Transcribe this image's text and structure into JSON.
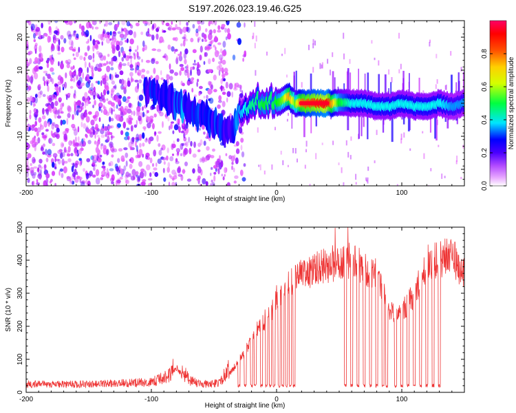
{
  "title": "S197.2026.023.19.46.G25",
  "chart_data": [
    {
      "type": "heatmap",
      "title": "S197.2026.023.19.46.G25",
      "xlabel": "Height of straight line (km)",
      "ylabel": "Frequency (Hz)",
      "xlim": [
        -200,
        150
      ],
      "ylim": [
        -25,
        25
      ],
      "xticks": [
        -200,
        -100,
        0,
        100
      ],
      "yticks": [
        -20,
        -10,
        0,
        10,
        20
      ],
      "colorbar": {
        "label": "Normalized spectral amplitude",
        "range": [
          0,
          1
        ],
        "ticks": [
          "0.0",
          "0.2",
          "0.4",
          "0.6",
          "0.8"
        ],
        "tick_values": [
          0.0,
          0.2,
          0.4,
          0.6,
          0.8
        ],
        "colors": [
          "#ffffff",
          "#e040fb",
          "#7f00ff",
          "#0000ff",
          "#00ffff",
          "#00ff00",
          "#ffff00",
          "#ff8000",
          "#ff0000",
          "#ff0080"
        ]
      },
      "ridge": {
        "description_points_x": [
          -105,
          -90,
          -75,
          -60,
          -45,
          -35,
          -30,
          -25,
          -20,
          -15,
          -10,
          -5,
          0,
          5,
          10,
          15,
          20,
          30,
          40,
          50,
          60,
          70,
          80,
          90,
          100,
          110,
          120,
          130,
          140,
          150
        ],
        "description_points_y": [
          4,
          2,
          -1,
          -4,
          -7,
          -9,
          -3,
          -2,
          0,
          1,
          0,
          1,
          0,
          1,
          2,
          0,
          0,
          0,
          0,
          0,
          0,
          0,
          -1,
          -1,
          0,
          -1,
          -1,
          0,
          -1,
          0
        ],
        "amplitude": [
          0.3,
          0.3,
          0.35,
          0.35,
          0.3,
          0.3,
          0.4,
          0.45,
          0.5,
          0.5,
          0.55,
          0.5,
          0.55,
          0.6,
          0.75,
          0.6,
          0.8,
          0.85,
          0.9,
          0.55,
          0.45,
          0.45,
          0.45,
          0.45,
          0.45,
          0.45,
          0.45,
          0.45,
          0.4,
          0.4
        ]
      }
    },
    {
      "type": "line",
      "xlabel": "Height of straight line (km)",
      "ylabel": "SNR (10 * v/v)",
      "xlim": [
        -200,
        150
      ],
      "ylim": [
        0,
        500
      ],
      "xticks": [
        -200,
        -100,
        0,
        100
      ],
      "yticks": [
        0,
        100,
        200,
        300,
        400,
        500
      ],
      "line_color": "#ee3333",
      "envelope_x": [
        -200,
        -150,
        -100,
        -85,
        -80,
        -75,
        -70,
        -60,
        -45,
        -40,
        -35,
        -30,
        -25,
        -20,
        -15,
        -10,
        -5,
        0,
        5,
        10,
        15,
        20,
        30,
        40,
        50,
        55,
        60,
        65,
        70,
        80,
        90,
        100,
        110,
        120,
        130,
        140,
        150
      ],
      "envelope_y": [
        20,
        20,
        25,
        45,
        75,
        55,
        30,
        20,
        25,
        50,
        70,
        100,
        130,
        160,
        200,
        220,
        240,
        290,
        300,
        330,
        350,
        360,
        375,
        390,
        400,
        410,
        400,
        390,
        380,
        370,
        240,
        250,
        300,
        400,
        410,
        420,
        360
      ],
      "dropouts_x": [
        -30,
        -25,
        -20,
        -17,
        -12,
        -8,
        -5,
        -2,
        2,
        5,
        8,
        11,
        14,
        55,
        60,
        65,
        70,
        75,
        80,
        85,
        88,
        95,
        100,
        105,
        110,
        115,
        120,
        125,
        130
      ]
    }
  ]
}
